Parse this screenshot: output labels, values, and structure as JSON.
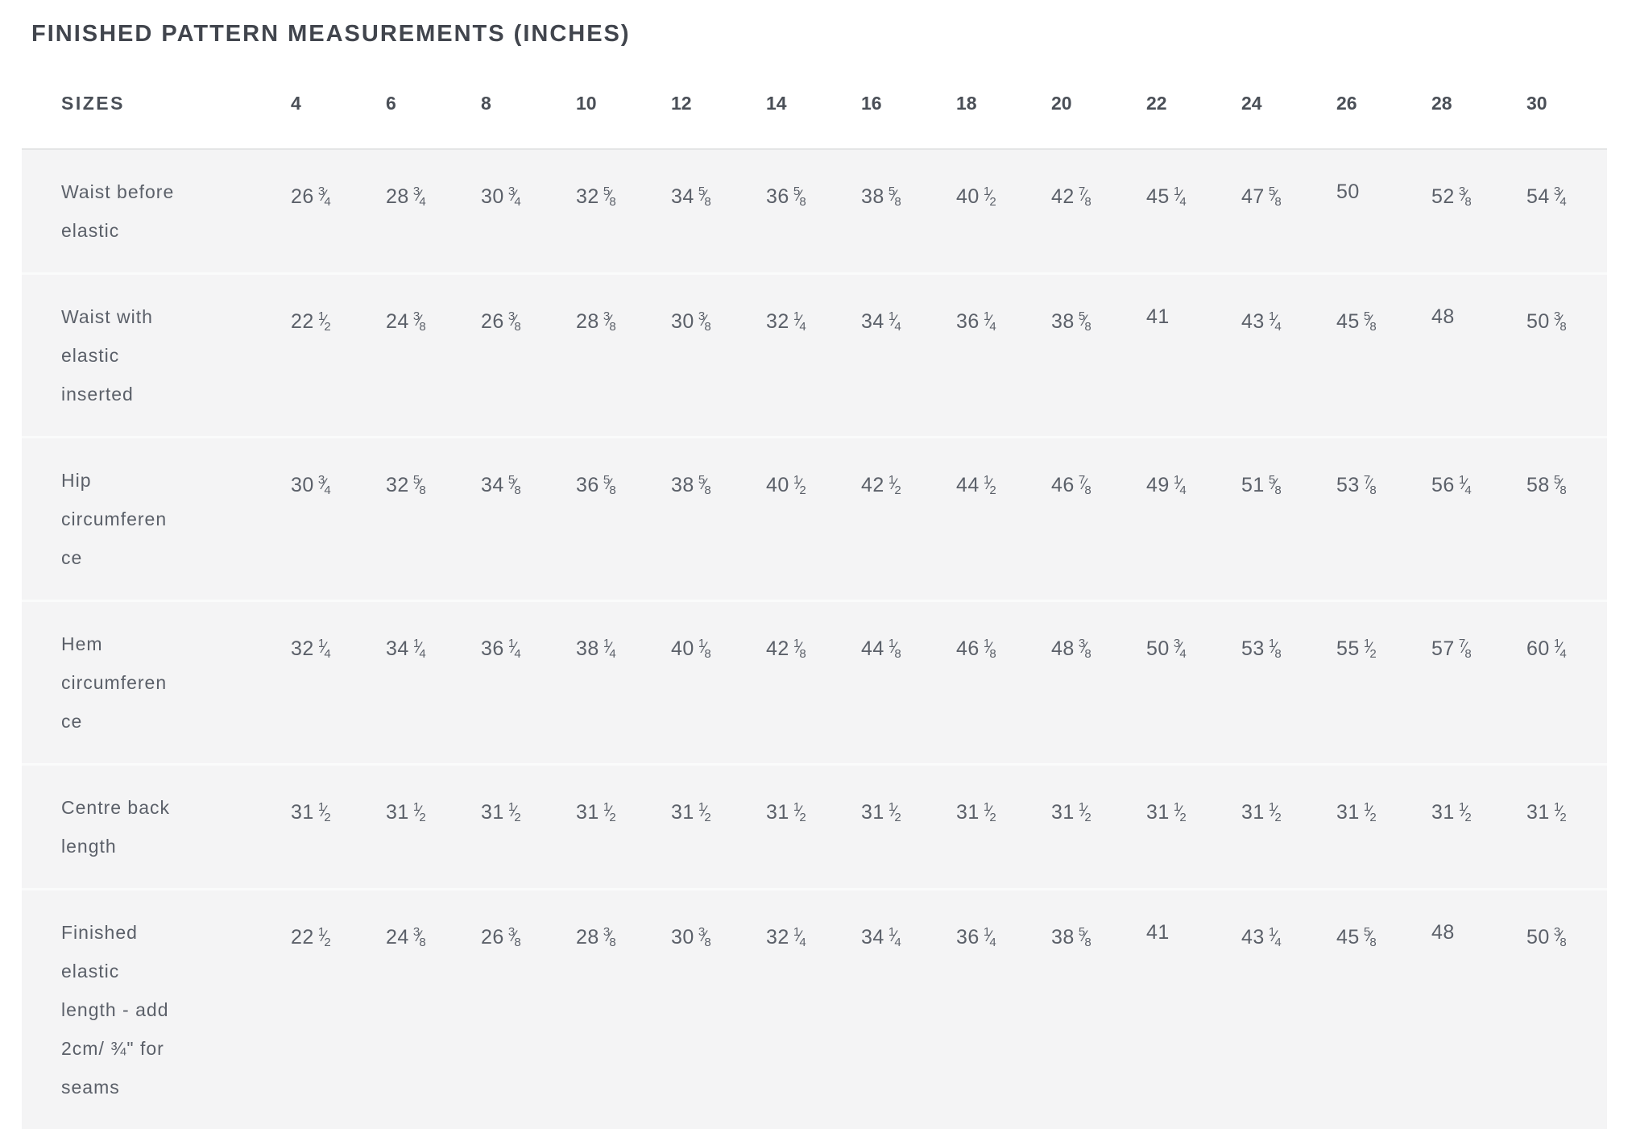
{
  "page": {
    "title": "FINISHED PATTERN MEASUREMENTS (INCHES)"
  },
  "table": {
    "header": {
      "label": "SIZES",
      "sizes": [
        "4",
        "6",
        "8",
        "10",
        "12",
        "14",
        "16",
        "18",
        "20",
        "22",
        "24",
        "26",
        "28",
        "30"
      ]
    },
    "rows": [
      {
        "label": "Waist before elastic",
        "values": [
          "26 3/4",
          "28 3/4",
          "30 3/4",
          "32 5/8",
          "34 5/8",
          "36 5/8",
          "38 5/8",
          "40 1/2",
          "42 7/8",
          "45 1/4",
          "47 5/8",
          "50",
          "52 3/8",
          "54 3/4"
        ]
      },
      {
        "label": "Waist with elastic inserted",
        "values": [
          "22 1/2",
          "24 3/8",
          "26 3/8",
          "28 3/8",
          "30 3/8",
          "32 1/4",
          "34 1/4",
          "36 1/4",
          "38 5/8",
          "41",
          "43 1/4",
          "45 5/8",
          "48",
          "50 3/8"
        ]
      },
      {
        "label": "Hip circumference",
        "values": [
          "30 3/4",
          "32 5/8",
          "34 5/8",
          "36 5/8",
          "38 5/8",
          "40 1/2",
          "42 1/2",
          "44 1/2",
          "46 7/8",
          "49 1/4",
          "51 5/8",
          "53 7/8",
          "56 1/4",
          "58 5/8"
        ]
      },
      {
        "label": "Hem circumference",
        "values": [
          "32 1/4",
          "34 1/4",
          "36 1/4",
          "38 1/4",
          "40 1/8",
          "42 1/8",
          "44 1/8",
          "46 1/8",
          "48 3/8",
          "50 3/4",
          "53 1/8",
          "55 1/2",
          "57 7/8",
          "60 1/4"
        ]
      },
      {
        "label": "Centre back length",
        "values": [
          "31 1/2",
          "31 1/2",
          "31 1/2",
          "31 1/2",
          "31 1/2",
          "31 1/2",
          "31 1/2",
          "31 1/2",
          "31 1/2",
          "31 1/2",
          "31 1/2",
          "31 1/2",
          "31 1/2",
          "31 1/2"
        ]
      },
      {
        "label": "Finished elastic length - add 2cm/ ¾\" for seams",
        "values": [
          "22 1/2",
          "24 3/8",
          "26 3/8",
          "28 3/8",
          "30 3/8",
          "32 1/4",
          "34 1/4",
          "36 1/4",
          "38 5/8",
          "41",
          "43 1/4",
          "45 5/8",
          "48",
          "50 3/8"
        ]
      }
    ]
  },
  "colors": {
    "row_background": "#f4f4f5",
    "header_rule": "#e4e5e6",
    "title_text": "#41454d",
    "body_text": "#5b6069"
  }
}
